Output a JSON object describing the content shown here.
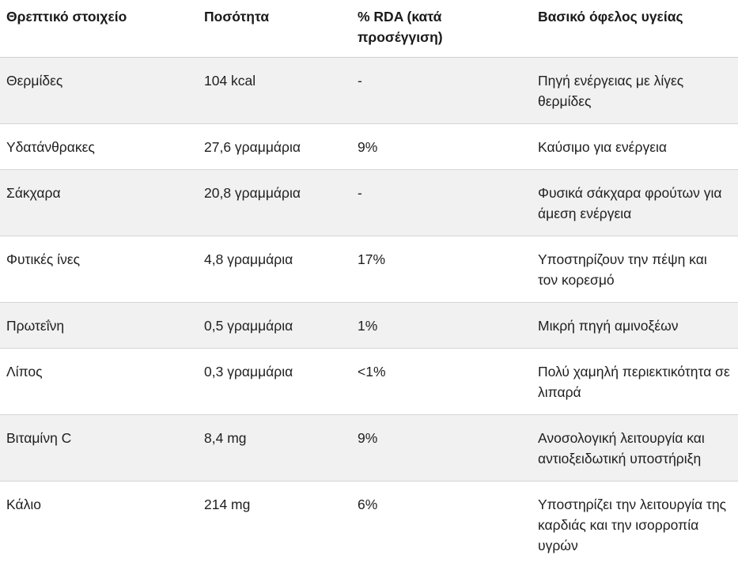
{
  "colors": {
    "row_alt_bg": "#f1f1f1",
    "row_bg": "#ffffff",
    "border": "#d4d4d4",
    "header_border": "#cfcfcf",
    "text": "#1f1f1f"
  },
  "table": {
    "columns": {
      "nutrient": "Θρεπτικό στοιχείο",
      "amount": "Ποσότητα",
      "rda": "% RDA (κατά προσέγγιση)",
      "benefit": "Βασικό όφελος υγείας"
    },
    "rows": [
      {
        "nutrient": "Θερμίδες",
        "amount": "104 kcal",
        "rda": "-",
        "benefit": "Πηγή ενέργειας με λίγες θερμίδες"
      },
      {
        "nutrient": "Υδατάνθρακες",
        "amount": "27,6 γραμμάρια",
        "rda": "9%",
        "benefit": "Καύσιμο για ενέργεια"
      },
      {
        "nutrient": "Σάκχαρα",
        "amount": "20,8 γραμμάρια",
        "rda": "-",
        "benefit": "Φυσικά σάκχαρα φρούτων για άμεση ενέργεια"
      },
      {
        "nutrient": "Φυτικές ίνες",
        "amount": "4,8 γραμμάρια",
        "rda": "17%",
        "benefit": "Υποστηρίζουν την πέψη και τον κορεσμό"
      },
      {
        "nutrient": "Πρωτεΐνη",
        "amount": "0,5 γραμμάρια",
        "rda": "1%",
        "benefit": "Μικρή πηγή αμινοξέων"
      },
      {
        "nutrient": "Λίπος",
        "amount": "0,3 γραμμάρια",
        "rda": "<1%",
        "benefit": "Πολύ χαμηλή περιεκτικότητα σε λιπαρά"
      },
      {
        "nutrient": "Βιταμίνη C",
        "amount": "8,4 mg",
        "rda": "9%",
        "benefit": "Ανοσολογική λειτουργία και αντιοξειδωτική υποστήριξη"
      },
      {
        "nutrient": "Κάλιο",
        "amount": "214 mg",
        "rda": "6%",
        "benefit": "Υποστηρίζει την λειτουργία της καρδιάς και την ισορροπία υγρών"
      }
    ]
  }
}
